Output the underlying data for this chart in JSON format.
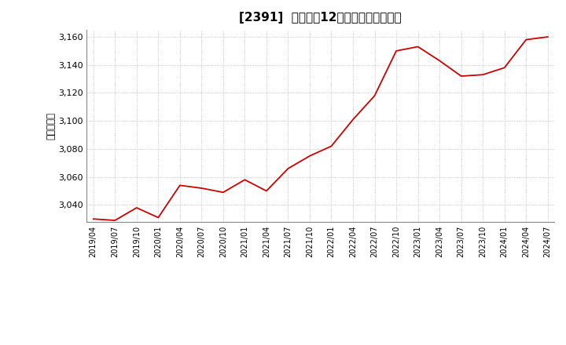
{
  "title": "[2391]  売上高の12か月移動合計の推移",
  "ylabel": "（百万円）",
  "line_color": "#cc0000",
  "background_color": "#ffffff",
  "grid_color": "#999999",
  "ylim": [
    3028,
    3165
  ],
  "yticks": [
    3040,
    3060,
    3080,
    3100,
    3120,
    3140,
    3160
  ],
  "dates": [
    "2019/04",
    "2019/07",
    "2019/10",
    "2020/01",
    "2020/04",
    "2020/07",
    "2020/10",
    "2021/01",
    "2021/04",
    "2021/07",
    "2021/10",
    "2022/01",
    "2022/04",
    "2022/07",
    "2022/10",
    "2023/01",
    "2023/04",
    "2023/07",
    "2023/10",
    "2024/01",
    "2024/04",
    "2024/07"
  ],
  "values": [
    3030,
    3029,
    3038,
    3031,
    3054,
    3052,
    3049,
    3058,
    3050,
    3066,
    3075,
    3082,
    3101,
    3118,
    3150,
    3153,
    3143,
    3132,
    3133,
    3138,
    3158,
    3160
  ]
}
